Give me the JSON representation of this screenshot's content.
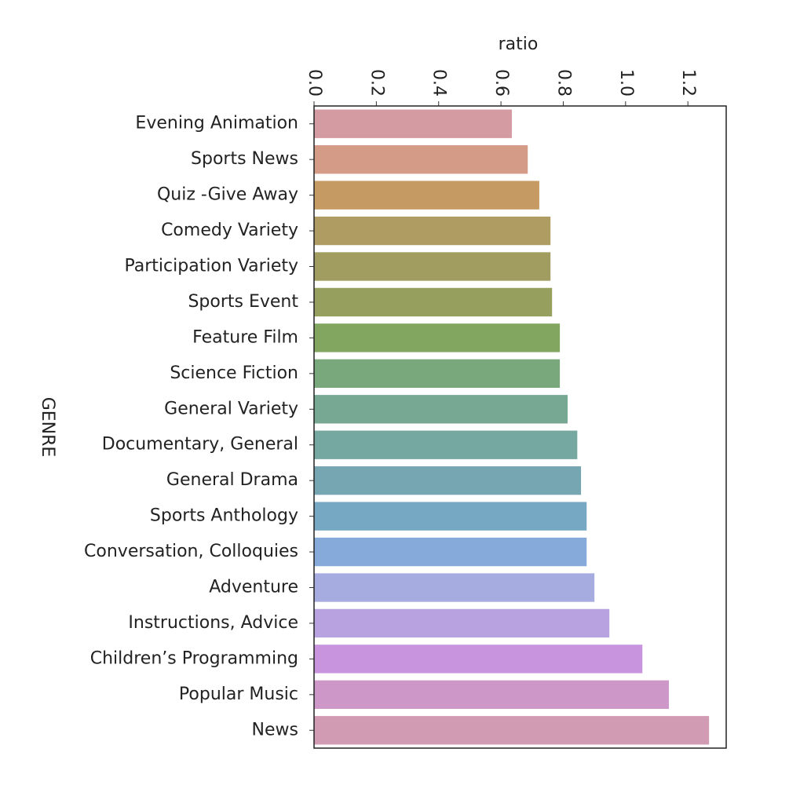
{
  "chart_data": {
    "type": "barh",
    "xlabel": "ratio",
    "ylabel": "GENRE",
    "categories": [
      "Evening Animation",
      "Sports News",
      "Quiz -Give Away",
      "Comedy Variety",
      "Participation Variety",
      "Sports Event",
      "Feature Film",
      "Science Fiction",
      "General Variety",
      "Documentary, General",
      "General Drama",
      "Sports Anthology",
      "Conversation, Colloquies",
      "Adventure",
      "Instructions, Advice",
      "Children’s Programming",
      "Popular Music",
      "News"
    ],
    "values": [
      0.635,
      0.686,
      0.723,
      0.759,
      0.759,
      0.764,
      0.789,
      0.789,
      0.814,
      0.845,
      0.857,
      0.875,
      0.875,
      0.9,
      0.948,
      1.054,
      1.139,
      1.268
    ],
    "colors": [
      "#d59ba2",
      "#d49b86",
      "#c69a63",
      "#ae9c62",
      "#a19c60",
      "#979f5e",
      "#82a65f",
      "#78a87c",
      "#77a893",
      "#76a8a2",
      "#76a6b1",
      "#76a8c4",
      "#86abdb",
      "#a6abe0",
      "#b8a3e0",
      "#c894de",
      "#cd98c8",
      "#d29bb4"
    ],
    "xlim": [
      0,
      1.323
    ],
    "xticks": [
      {
        "value": 0,
        "label": "0.0"
      },
      0.2,
      0.4,
      0.6,
      0.8,
      {
        "value": 1,
        "label": "1.0"
      },
      1.2
    ]
  }
}
